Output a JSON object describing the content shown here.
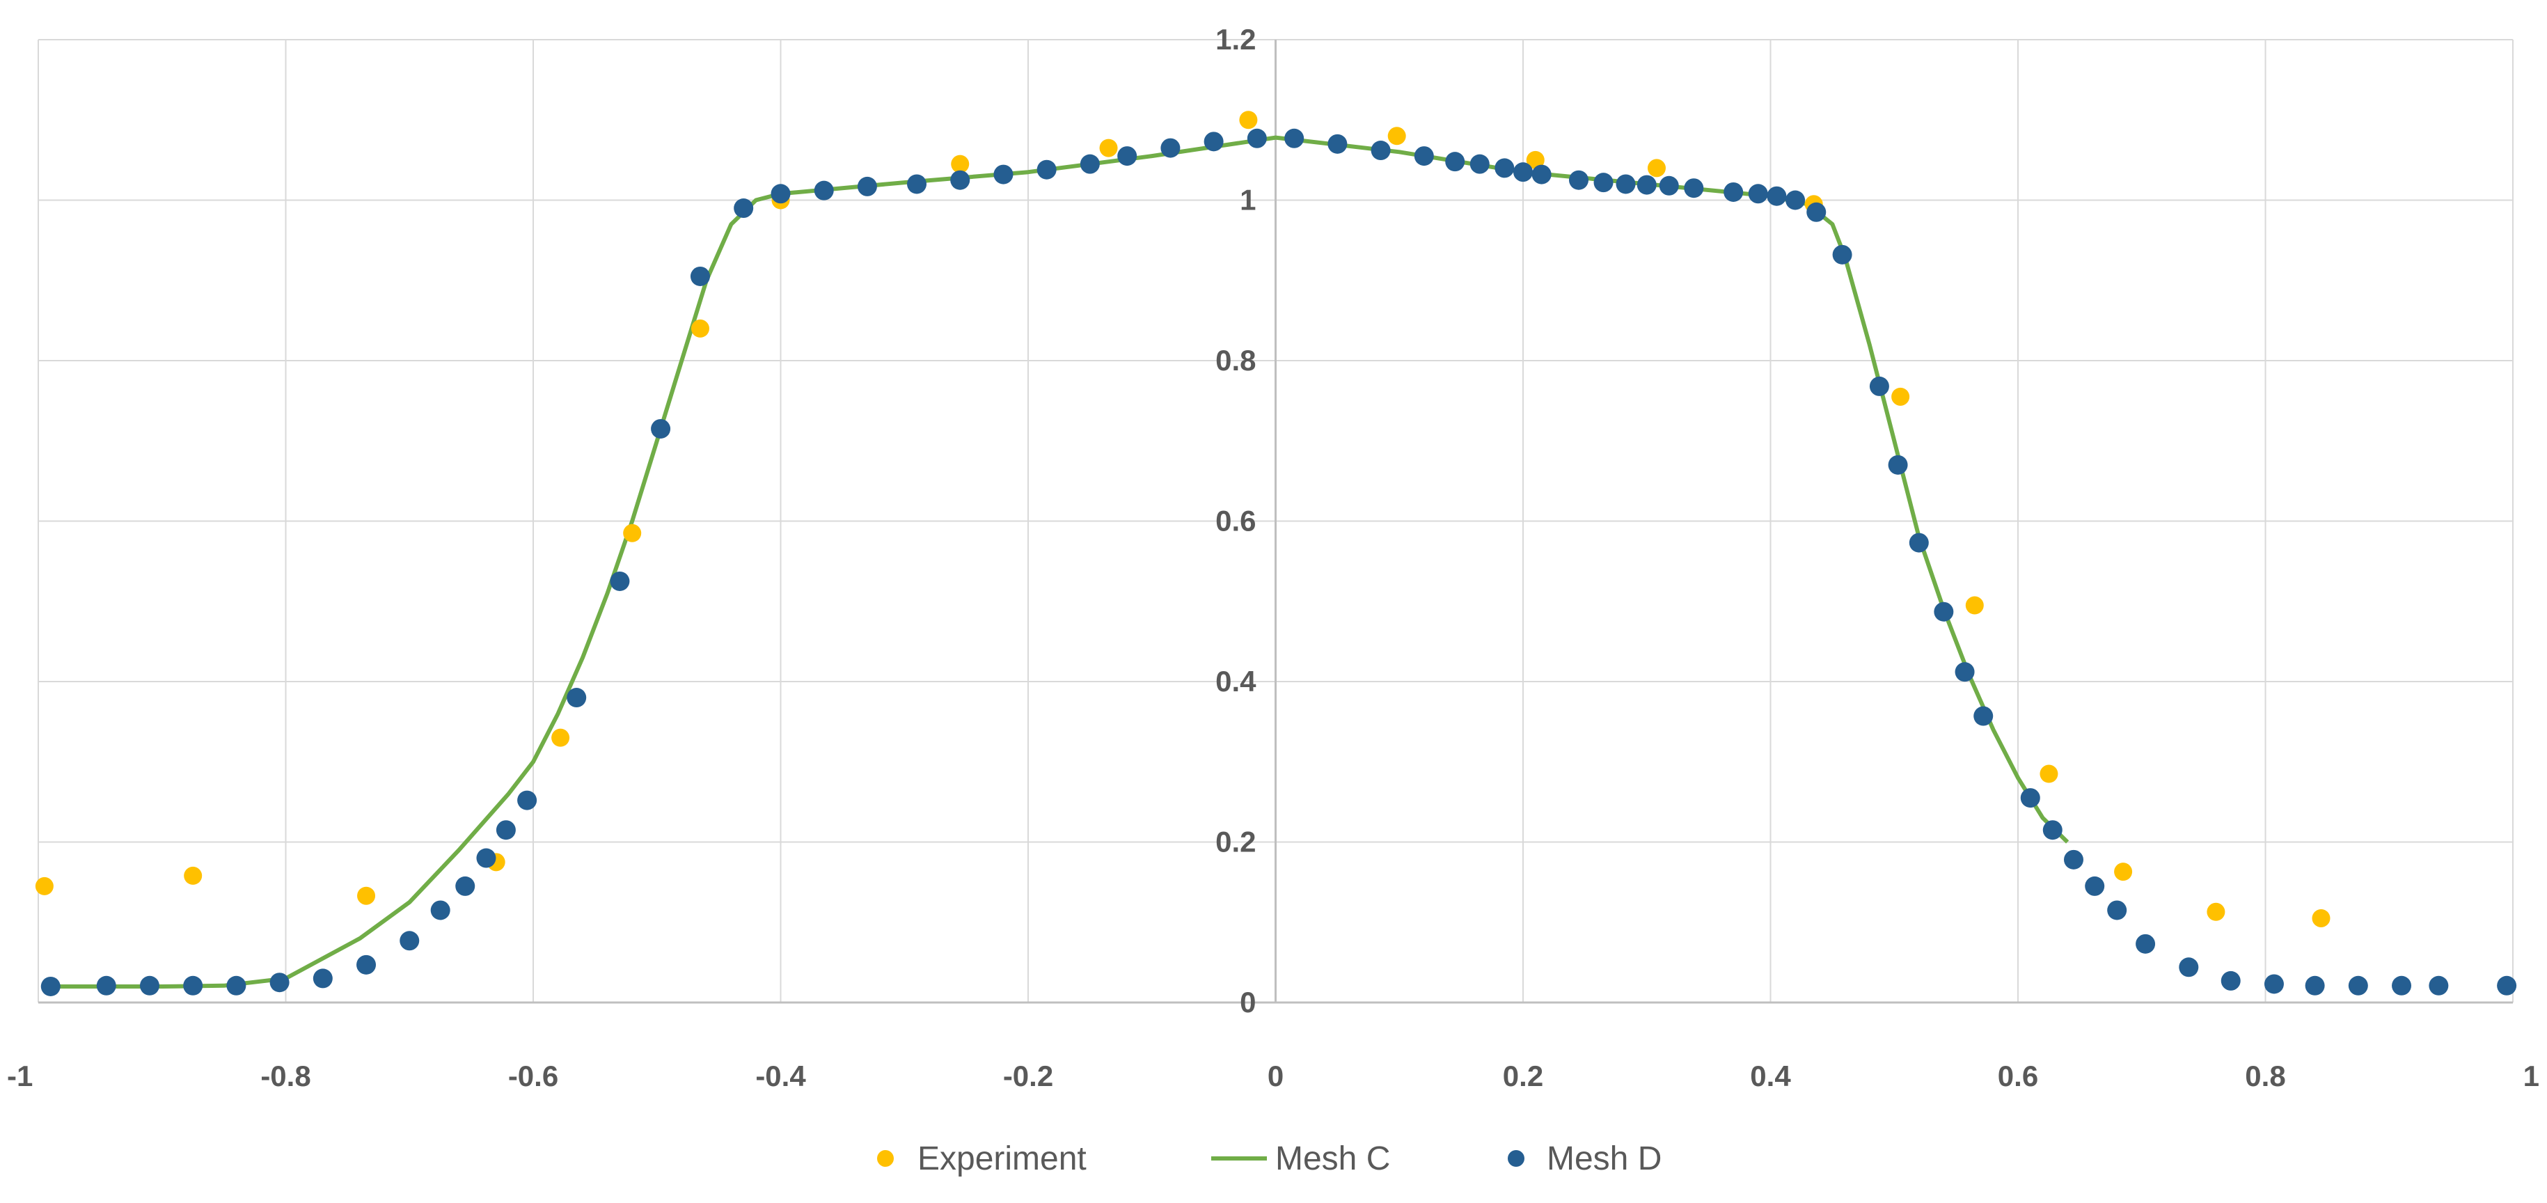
{
  "chart_data": {
    "type": "scatter",
    "title": "",
    "xlabel": "",
    "ylabel": "",
    "xlim": [
      -1,
      1
    ],
    "ylim": [
      0,
      1.2
    ],
    "grid": true,
    "legend_position": "bottom",
    "x_ticks": [
      -1,
      -0.8,
      -0.6,
      -0.4,
      -0.2,
      0,
      0.2,
      0.4,
      0.6,
      0.8,
      1
    ],
    "x_tick_labels": [
      "-1",
      "-0.8",
      "-0.6",
      "-0.4",
      "-0.2",
      "0",
      "0.2",
      "0.4",
      "0.6",
      "0.8",
      "1"
    ],
    "y_ticks": [
      0,
      0.2,
      0.4,
      0.6,
      0.8,
      1,
      1.2
    ],
    "y_tick_labels": [
      "0",
      "0.2",
      "0.4",
      "0.6",
      "0.8",
      "1",
      "1.2"
    ],
    "series": [
      {
        "name": "Experiment",
        "style": "markers",
        "color": "#ffc000",
        "points": [
          [
            -0.995,
            0.145
          ],
          [
            -0.875,
            0.158
          ],
          [
            -0.735,
            0.133
          ],
          [
            -0.63,
            0.175
          ],
          [
            -0.578,
            0.33
          ],
          [
            -0.52,
            0.585
          ],
          [
            -0.465,
            0.84
          ],
          [
            -0.4,
            1.0
          ],
          [
            -0.255,
            1.045
          ],
          [
            -0.135,
            1.065
          ],
          [
            -0.022,
            1.1
          ],
          [
            0.098,
            1.08
          ],
          [
            0.21,
            1.05
          ],
          [
            0.308,
            1.04
          ],
          [
            0.435,
            0.995
          ],
          [
            0.505,
            0.755
          ],
          [
            0.565,
            0.495
          ],
          [
            0.625,
            0.285
          ],
          [
            0.685,
            0.163
          ],
          [
            0.76,
            0.113
          ],
          [
            0.845,
            0.105
          ]
        ]
      },
      {
        "name": "Mesh C",
        "style": "line",
        "color": "#70ad47",
        "points": [
          [
            -0.99,
            0.02
          ],
          [
            -0.9,
            0.02
          ],
          [
            -0.85,
            0.021
          ],
          [
            -0.8,
            0.03
          ],
          [
            -0.77,
            0.055
          ],
          [
            -0.74,
            0.08
          ],
          [
            -0.7,
            0.125
          ],
          [
            -0.66,
            0.19
          ],
          [
            -0.62,
            0.26
          ],
          [
            -0.6,
            0.3
          ],
          [
            -0.58,
            0.36
          ],
          [
            -0.56,
            0.43
          ],
          [
            -0.54,
            0.51
          ],
          [
            -0.52,
            0.6
          ],
          [
            -0.5,
            0.7
          ],
          [
            -0.48,
            0.8
          ],
          [
            -0.46,
            0.9
          ],
          [
            -0.44,
            0.97
          ],
          [
            -0.42,
            1.0
          ],
          [
            -0.4,
            1.008
          ],
          [
            -0.3,
            1.022
          ],
          [
            -0.2,
            1.035
          ],
          [
            -0.1,
            1.055
          ],
          [
            0.0,
            1.078
          ],
          [
            0.1,
            1.06
          ],
          [
            0.2,
            1.035
          ],
          [
            0.3,
            1.02
          ],
          [
            0.4,
            1.005
          ],
          [
            0.43,
            0.995
          ],
          [
            0.45,
            0.97
          ],
          [
            0.46,
            0.93
          ],
          [
            0.48,
            0.82
          ],
          [
            0.5,
            0.7
          ],
          [
            0.52,
            0.58
          ],
          [
            0.54,
            0.49
          ],
          [
            0.56,
            0.41
          ],
          [
            0.58,
            0.34
          ],
          [
            0.6,
            0.28
          ],
          [
            0.62,
            0.23
          ],
          [
            0.64,
            0.2
          ]
        ]
      },
      {
        "name": "Mesh D",
        "style": "markers",
        "color": "#255e91",
        "points": [
          [
            -0.99,
            0.02
          ],
          [
            -0.945,
            0.021
          ],
          [
            -0.91,
            0.021
          ],
          [
            -0.875,
            0.021
          ],
          [
            -0.84,
            0.021
          ],
          [
            -0.805,
            0.025
          ],
          [
            -0.77,
            0.03
          ],
          [
            -0.735,
            0.047
          ],
          [
            -0.7,
            0.077
          ],
          [
            -0.675,
            0.115
          ],
          [
            -0.655,
            0.145
          ],
          [
            -0.638,
            0.18
          ],
          [
            -0.622,
            0.215
          ],
          [
            -0.605,
            0.252
          ],
          [
            -0.565,
            0.38
          ],
          [
            -0.53,
            0.525
          ],
          [
            -0.497,
            0.715
          ],
          [
            -0.465,
            0.905
          ],
          [
            -0.43,
            0.99
          ],
          [
            -0.4,
            1.008
          ],
          [
            -0.365,
            1.012
          ],
          [
            -0.33,
            1.017
          ],
          [
            -0.29,
            1.02
          ],
          [
            -0.255,
            1.025
          ],
          [
            -0.22,
            1.032
          ],
          [
            -0.185,
            1.038
          ],
          [
            -0.15,
            1.045
          ],
          [
            -0.12,
            1.055
          ],
          [
            -0.085,
            1.065
          ],
          [
            -0.05,
            1.073
          ],
          [
            -0.015,
            1.077
          ],
          [
            0.015,
            1.077
          ],
          [
            0.05,
            1.07
          ],
          [
            0.085,
            1.062
          ],
          [
            0.12,
            1.055
          ],
          [
            0.145,
            1.048
          ],
          [
            0.165,
            1.045
          ],
          [
            0.185,
            1.04
          ],
          [
            0.2,
            1.035
          ],
          [
            0.215,
            1.032
          ],
          [
            0.245,
            1.025
          ],
          [
            0.265,
            1.022
          ],
          [
            0.283,
            1.02
          ],
          [
            0.3,
            1.019
          ],
          [
            0.318,
            1.018
          ],
          [
            0.338,
            1.015
          ],
          [
            0.37,
            1.01
          ],
          [
            0.39,
            1.008
          ],
          [
            0.405,
            1.005
          ],
          [
            0.42,
            1.0
          ],
          [
            0.437,
            0.985
          ],
          [
            0.458,
            0.932
          ],
          [
            0.488,
            0.768
          ],
          [
            0.503,
            0.67
          ],
          [
            0.52,
            0.573
          ],
          [
            0.54,
            0.487
          ],
          [
            0.557,
            0.412
          ],
          [
            0.572,
            0.357
          ],
          [
            0.61,
            0.255
          ],
          [
            0.628,
            0.215
          ],
          [
            0.645,
            0.178
          ],
          [
            0.662,
            0.145
          ],
          [
            0.68,
            0.115
          ],
          [
            0.703,
            0.073
          ],
          [
            0.738,
            0.044
          ],
          [
            0.772,
            0.027
          ],
          [
            0.807,
            0.023
          ],
          [
            0.84,
            0.021
          ],
          [
            0.875,
            0.021
          ],
          [
            0.91,
            0.021
          ],
          [
            0.94,
            0.021
          ],
          [
            0.995,
            0.021
          ]
        ]
      }
    ]
  }
}
